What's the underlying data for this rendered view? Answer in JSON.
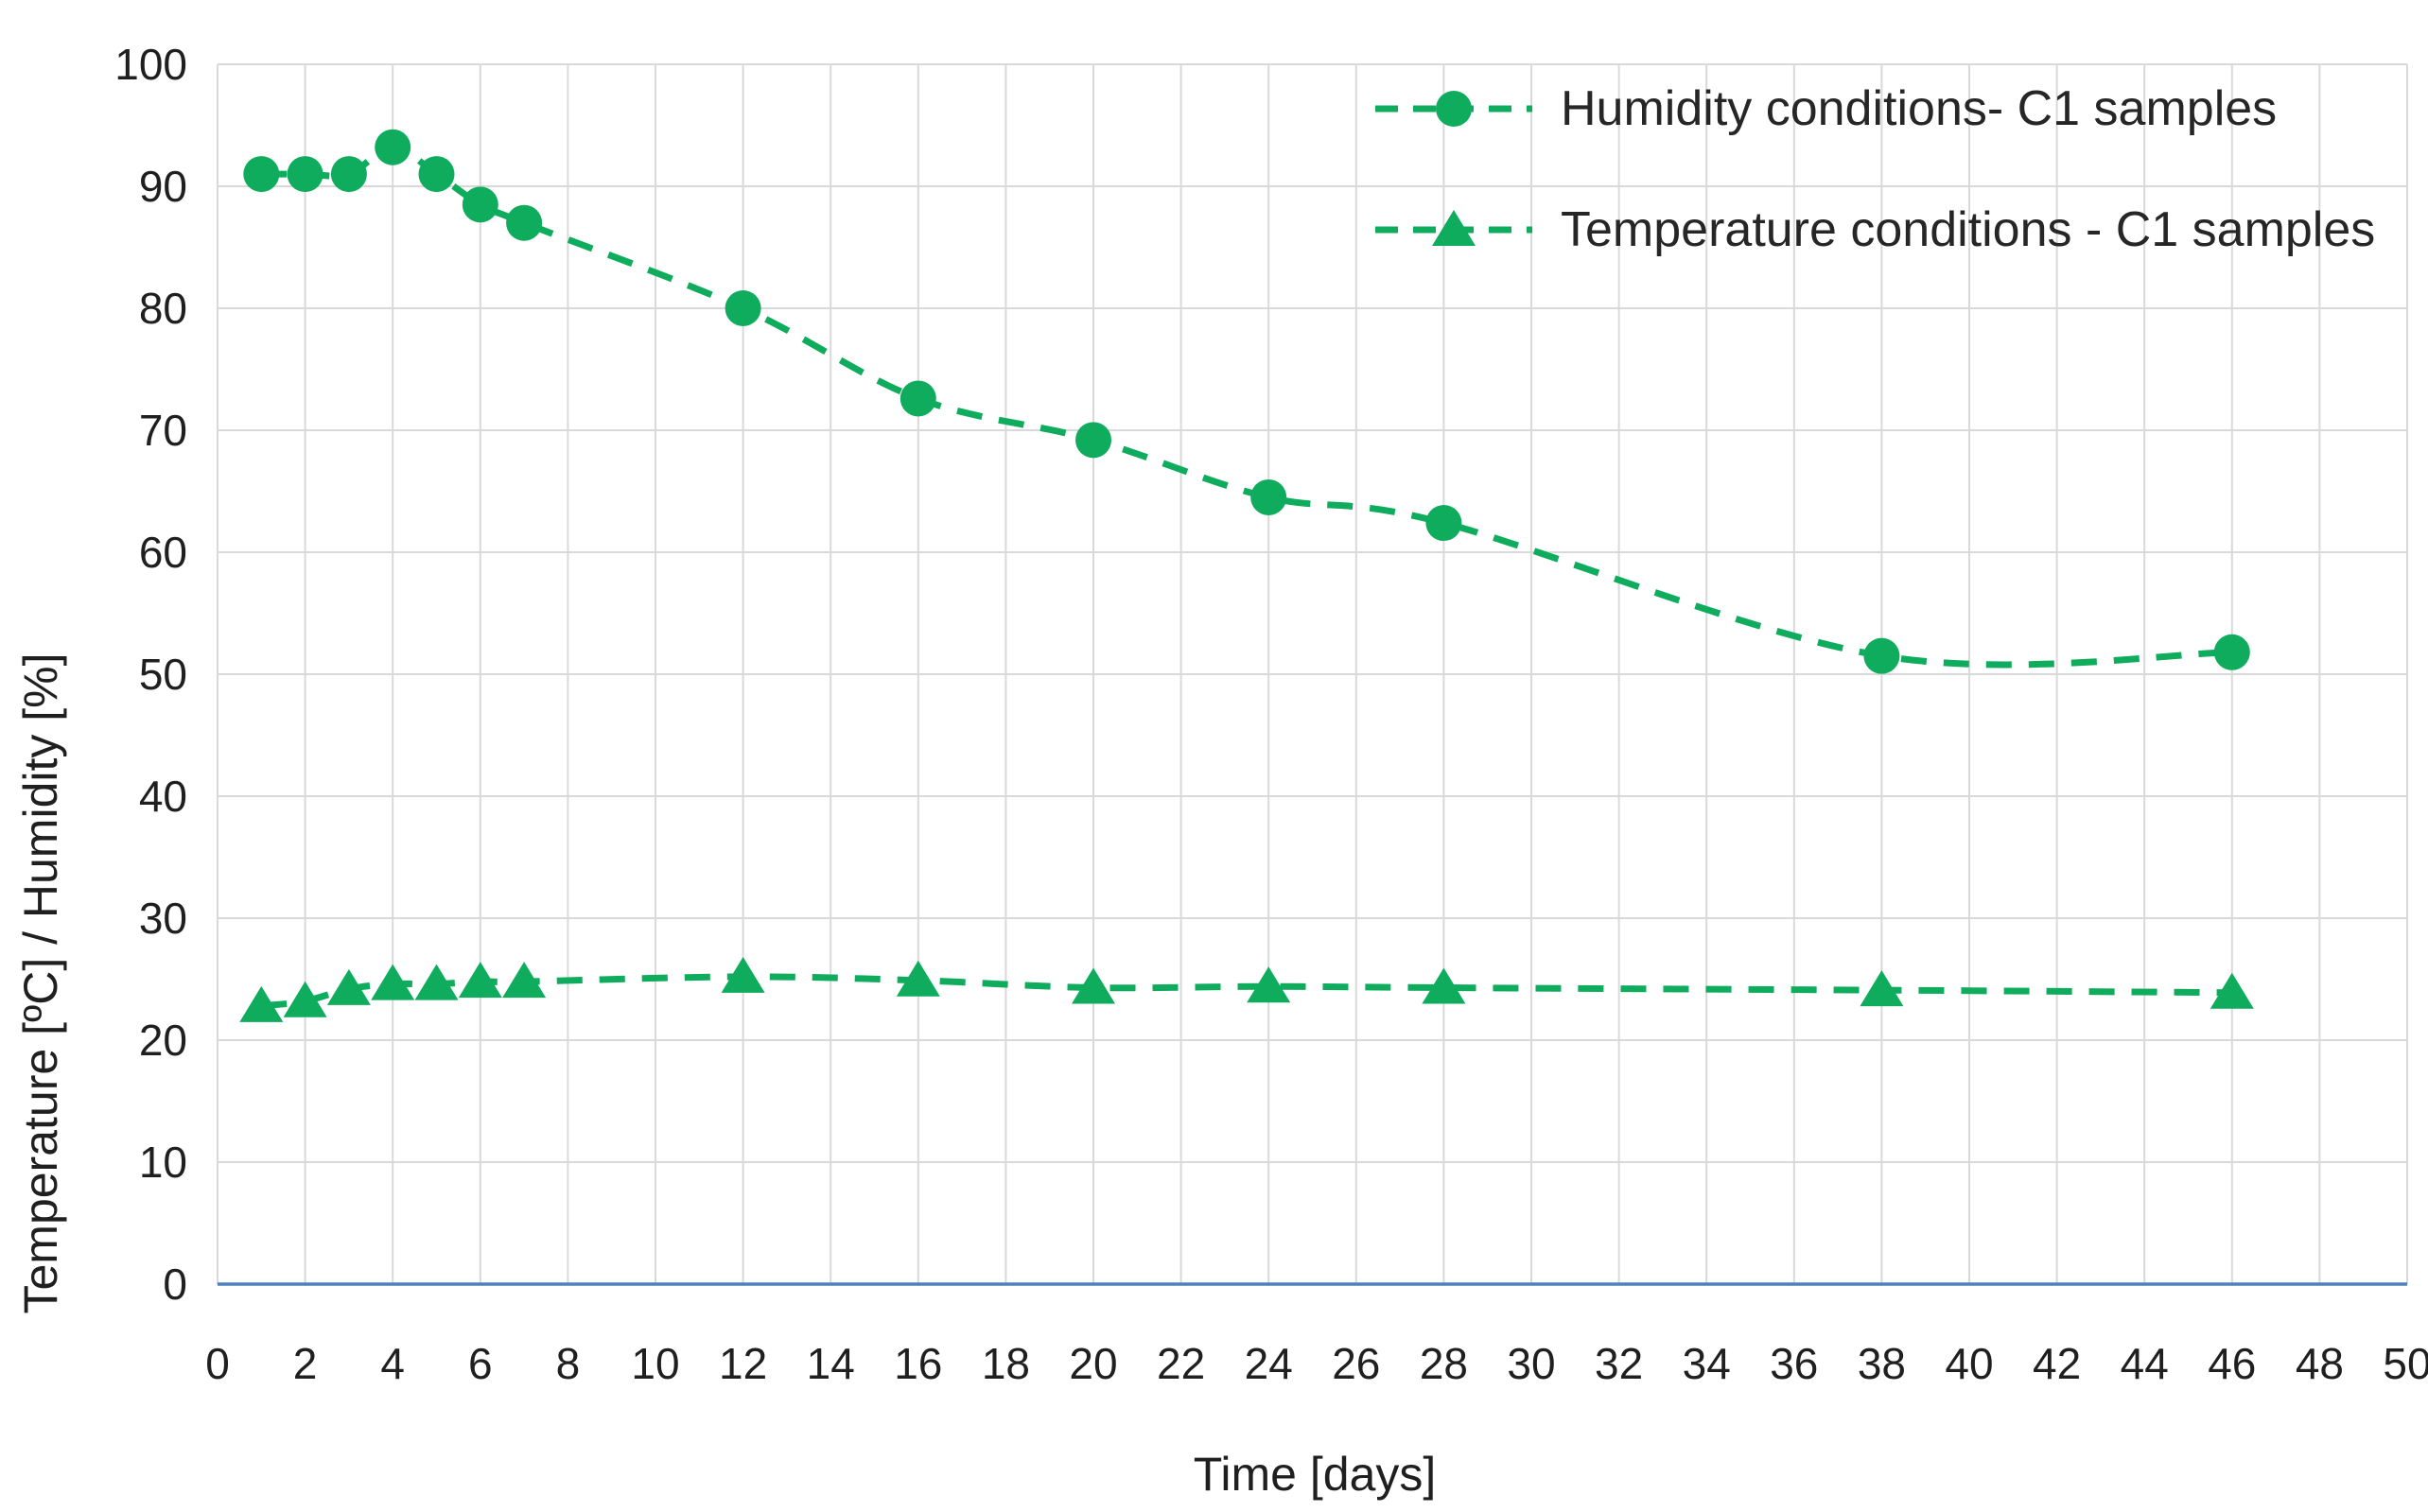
{
  "chart_data": {
    "type": "line",
    "title": "",
    "xlabel": "Time [days]",
    "ylabel": "Temperature [ºC] / Humidity [%]",
    "xlim": [
      0,
      50
    ],
    "ylim": [
      0,
      100
    ],
    "x_ticks": [
      0,
      2,
      4,
      6,
      8,
      10,
      12,
      14,
      16,
      18,
      20,
      22,
      24,
      26,
      28,
      30,
      32,
      34,
      36,
      38,
      40,
      42,
      44,
      46,
      48,
      50
    ],
    "y_ticks": [
      0,
      10,
      20,
      30,
      40,
      50,
      60,
      70,
      80,
      90,
      100
    ],
    "grid": true,
    "line_style": "dashed",
    "smoothed": true,
    "legend_position": "top-right",
    "x": [
      1,
      2,
      3,
      4,
      5,
      6,
      7,
      12,
      16,
      20,
      24,
      28,
      38,
      46
    ],
    "series": [
      {
        "name": "Humidity conditions- C1 samples",
        "marker": "circle",
        "values": [
          91,
          91,
          91,
          93.2,
          91,
          88.5,
          87,
          80,
          72.6,
          69.2,
          64.5,
          62.4,
          51.5,
          51.8
        ]
      },
      {
        "name": "Temperature conditions - C1 samples",
        "marker": "triangle",
        "values": [
          22.8,
          23.2,
          24.2,
          24.6,
          24.6,
          24.8,
          24.8,
          25.2,
          24.9,
          24.3,
          24.4,
          24.3,
          24.1,
          23.9
        ]
      }
    ],
    "colors": {
      "series_green": "#0FAC5E",
      "gridline": "#D9D9D9",
      "axis_line_blue": "#4F81BD",
      "text": "#1F1F1F",
      "background": "#FFFFFF"
    }
  }
}
